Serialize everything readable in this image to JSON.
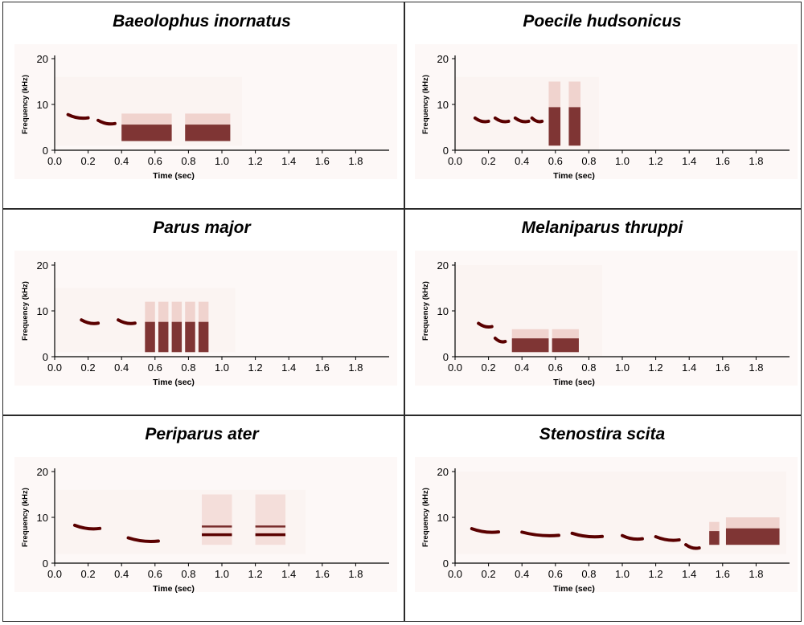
{
  "chart_data": [
    {
      "type": "heatmap",
      "title": "Baeolophus inornatus",
      "xlabel": "Time (sec)",
      "ylabel": "Frequency (kHz)",
      "xlim": [
        0,
        2.0
      ],
      "ylim": [
        0,
        20
      ],
      "x_ticks": [
        "0.0",
        "0.2",
        "0.4",
        "0.6",
        "0.8",
        "1.0",
        "1.2",
        "1.4",
        "1.6",
        "1.8"
      ],
      "y_ticks": [
        "0",
        "10",
        "20"
      ],
      "colormap": "Reds",
      "background": "#fbf4f2",
      "ink": "#5a0000",
      "data_extent": {
        "t": [
          0.0,
          1.12
        ],
        "f": [
          1,
          16
        ]
      },
      "segments": [
        {
          "t": [
            0.08,
            0.2
          ],
          "f": [
            6,
            8.5
          ],
          "kind": "tonal"
        },
        {
          "t": [
            0.26,
            0.36
          ],
          "f": [
            5,
            7
          ],
          "kind": "tonal"
        },
        {
          "t": [
            0.4,
            0.7
          ],
          "f": [
            2,
            8
          ],
          "kind": "broadband"
        },
        {
          "t": [
            0.78,
            1.05
          ],
          "f": [
            2,
            8
          ],
          "kind": "broadband"
        }
      ]
    },
    {
      "type": "heatmap",
      "title": "Poecile hudsonicus",
      "xlabel": "Time (sec)",
      "ylabel": "Frequency (kHz)",
      "xlim": [
        0,
        2.0
      ],
      "ylim": [
        0,
        20
      ],
      "x_ticks": [
        "0.0",
        "0.2",
        "0.4",
        "0.6",
        "0.8",
        "1.0",
        "1.2",
        "1.4",
        "1.6",
        "1.8"
      ],
      "y_ticks": [
        "0",
        "10",
        "20"
      ],
      "colormap": "Reds",
      "background": "#fbf4f2",
      "ink": "#5a0000",
      "data_extent": {
        "t": [
          0.0,
          0.86
        ],
        "f": [
          0,
          16
        ]
      },
      "segments": [
        {
          "t": [
            0.12,
            0.2
          ],
          "f": [
            5.5,
            7.5
          ],
          "kind": "tonal"
        },
        {
          "t": [
            0.24,
            0.32
          ],
          "f": [
            5.5,
            7.5
          ],
          "kind": "tonal"
        },
        {
          "t": [
            0.36,
            0.44
          ],
          "f": [
            5.5,
            7.5
          ],
          "kind": "tonal"
        },
        {
          "t": [
            0.46,
            0.52
          ],
          "f": [
            5.5,
            7.5
          ],
          "kind": "tonal"
        },
        {
          "t": [
            0.56,
            0.63
          ],
          "f": [
            1,
            15
          ],
          "kind": "broadband"
        },
        {
          "t": [
            0.68,
            0.75
          ],
          "f": [
            1,
            15
          ],
          "kind": "broadband"
        }
      ]
    },
    {
      "type": "heatmap",
      "title": "Parus major",
      "xlabel": "Time (sec)",
      "ylabel": "Frequency (kHz)",
      "xlim": [
        0,
        2.0
      ],
      "ylim": [
        0,
        20
      ],
      "x_ticks": [
        "0.0",
        "0.2",
        "0.4",
        "0.6",
        "0.8",
        "1.0",
        "1.2",
        "1.4",
        "1.6",
        "1.8"
      ],
      "y_ticks": [
        "0",
        "10",
        "20"
      ],
      "colormap": "Reds",
      "background": "#fbf4f2",
      "ink": "#5a0000",
      "data_extent": {
        "t": [
          0.0,
          1.08
        ],
        "f": [
          1,
          15
        ]
      },
      "segments": [
        {
          "t": [
            0.16,
            0.26
          ],
          "f": [
            7,
            8
          ],
          "kind": "tonal"
        },
        {
          "t": [
            0.38,
            0.48
          ],
          "f": [
            7,
            8
          ],
          "kind": "tonal"
        },
        {
          "t": [
            0.54,
            0.6
          ],
          "f": [
            1,
            12
          ],
          "kind": "broadband"
        },
        {
          "t": [
            0.62,
            0.68
          ],
          "f": [
            1,
            12
          ],
          "kind": "broadband"
        },
        {
          "t": [
            0.7,
            0.76
          ],
          "f": [
            1,
            12
          ],
          "kind": "broadband"
        },
        {
          "t": [
            0.78,
            0.84
          ],
          "f": [
            1,
            12
          ],
          "kind": "broadband"
        },
        {
          "t": [
            0.86,
            0.92
          ],
          "f": [
            1,
            12
          ],
          "kind": "broadband"
        }
      ]
    },
    {
      "type": "heatmap",
      "title": "Melaniparus thruppi",
      "xlabel": "Time (sec)",
      "ylabel": "Frequency (kHz)",
      "xlim": [
        0,
        2.0
      ],
      "ylim": [
        0,
        20
      ],
      "x_ticks": [
        "0.0",
        "0.2",
        "0.4",
        "0.6",
        "0.8",
        "1.0",
        "1.2",
        "1.4",
        "1.6",
        "1.8"
      ],
      "y_ticks": [
        "0",
        "10",
        "20"
      ],
      "colormap": "Reds",
      "background": "#fbf4f2",
      "ink": "#5a0000",
      "data_extent": {
        "t": [
          0.0,
          0.88
        ],
        "f": [
          0,
          20
        ]
      },
      "segments": [
        {
          "t": [
            0.14,
            0.22
          ],
          "f": [
            5.5,
            8
          ],
          "kind": "tonal"
        },
        {
          "t": [
            0.24,
            0.3
          ],
          "f": [
            1,
            6
          ],
          "kind": "tonal"
        },
        {
          "t": [
            0.34,
            0.56
          ],
          "f": [
            1,
            6
          ],
          "kind": "broadband"
        },
        {
          "t": [
            0.58,
            0.74
          ],
          "f": [
            1,
            6
          ],
          "kind": "broadband"
        }
      ]
    },
    {
      "type": "heatmap",
      "title": "Periparus ater",
      "xlabel": "Time (sec)",
      "ylabel": "Frequency (kHz)",
      "xlim": [
        0,
        2.0
      ],
      "ylim": [
        0,
        20
      ],
      "x_ticks": [
        "0.0",
        "0.2",
        "0.4",
        "0.6",
        "0.8",
        "1.0",
        "1.2",
        "1.4",
        "1.6",
        "1.8"
      ],
      "y_ticks": [
        "0",
        "10",
        "20"
      ],
      "colormap": "Reds",
      "background": "#fbf4f2",
      "ink": "#5a0000",
      "data_extent": {
        "t": [
          0.0,
          1.5
        ],
        "f": [
          2,
          16
        ]
      },
      "segments": [
        {
          "t": [
            0.12,
            0.27
          ],
          "f": [
            7,
            8.5
          ],
          "kind": "tonal"
        },
        {
          "t": [
            0.44,
            0.62
          ],
          "f": [
            4.5,
            5.5
          ],
          "kind": "tonal"
        },
        {
          "t": [
            0.88,
            1.06
          ],
          "f": [
            4,
            15
          ],
          "kind": "harmonic"
        },
        {
          "t": [
            1.2,
            1.38
          ],
          "f": [
            4,
            15
          ],
          "kind": "harmonic"
        }
      ]
    },
    {
      "type": "heatmap",
      "title": "Stenostira scita",
      "xlabel": "Time (sec)",
      "ylabel": "Frequency (kHz)",
      "xlim": [
        0,
        2.0
      ],
      "ylim": [
        0,
        20
      ],
      "x_ticks": [
        "0.0",
        "0.2",
        "0.4",
        "0.6",
        "0.8",
        "1.0",
        "1.2",
        "1.4",
        "1.6",
        "1.8"
      ],
      "y_ticks": [
        "0",
        "10",
        "20"
      ],
      "colormap": "Reds",
      "background": "#fbf4f2",
      "ink": "#5a0000",
      "data_extent": {
        "t": [
          0.0,
          1.98
        ],
        "f": [
          2,
          20
        ]
      },
      "segments": [
        {
          "t": [
            0.1,
            0.26
          ],
          "f": [
            6,
            8
          ],
          "kind": "tonal"
        },
        {
          "t": [
            0.4,
            0.62
          ],
          "f": [
            4.5,
            8
          ],
          "kind": "tonal"
        },
        {
          "t": [
            0.7,
            0.88
          ],
          "f": [
            5,
            7
          ],
          "kind": "tonal"
        },
        {
          "t": [
            1.0,
            1.12
          ],
          "f": [
            4,
            7
          ],
          "kind": "tonal"
        },
        {
          "t": [
            1.2,
            1.34
          ],
          "f": [
            3.5,
            7
          ],
          "kind": "tonal"
        },
        {
          "t": [
            1.38,
            1.46
          ],
          "f": [
            3,
            4
          ],
          "kind": "tonal"
        },
        {
          "t": [
            1.52,
            1.58
          ],
          "f": [
            4,
            9
          ],
          "kind": "broadband"
        },
        {
          "t": [
            1.62,
            1.94
          ],
          "f": [
            4,
            10
          ],
          "kind": "broadband"
        }
      ]
    }
  ]
}
